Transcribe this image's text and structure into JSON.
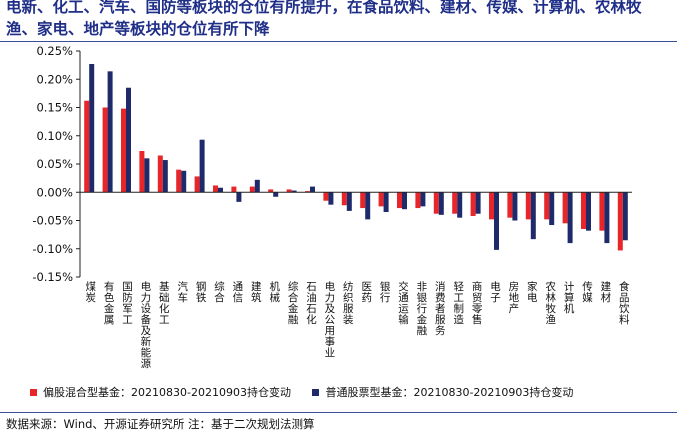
{
  "title": "电新、化工、汽车、国防等板块的仓位有所提升，在食品饮料、建材、传媒、计算机、农林牧渔、家电、地产等板块的仓位有所下降",
  "legend": {
    "series1_label": "偏股混合型基金：20210830-20210903持仓变动",
    "series2_label": "普通股票型基金：20210830-20210903持仓变动"
  },
  "source": "数据来源：Wind、开源证券研究所 注：基于二次规划法测算",
  "colors": {
    "series1": "#e8262a",
    "series2": "#1f2a6b",
    "title": "#1f2f88"
  },
  "chart_data": {
    "type": "bar",
    "title": "",
    "xlabel": "",
    "ylabel": "",
    "ylim": [
      -0.15,
      0.25
    ],
    "yticks": [
      -0.15,
      -0.1,
      -0.05,
      0.0,
      0.05,
      0.1,
      0.15,
      0.2,
      0.25
    ],
    "ytick_labels": [
      "-0.15%",
      "-0.10%",
      "-0.05%",
      "0.00%",
      "0.05%",
      "0.10%",
      "0.15%",
      "0.20%",
      "0.25%"
    ],
    "categories": [
      "煤炭",
      "有色金属",
      "国防军工",
      "电力设备及新能源",
      "基础化工",
      "汽车",
      "钢铁",
      "综合",
      "通信",
      "建筑",
      "机械",
      "综合金融",
      "石油石化",
      "电力及公用事业",
      "纺织服装",
      "医药",
      "银行",
      "交通运输",
      "非银行金融",
      "消费者服务",
      "轻工制造",
      "商贸零售",
      "电子",
      "房地产",
      "家电",
      "农林牧渔",
      "计算机",
      "传媒",
      "建材",
      "食品饮料"
    ],
    "series": [
      {
        "name": "偏股混合型基金：20210830-20210903持仓变动",
        "values": [
          0.162,
          0.15,
          0.148,
          0.073,
          0.065,
          0.04,
          0.028,
          0.012,
          0.01,
          0.01,
          0.005,
          0.005,
          0.002,
          -0.015,
          -0.023,
          -0.028,
          -0.025,
          -0.028,
          -0.028,
          -0.038,
          -0.038,
          -0.042,
          -0.048,
          -0.045,
          -0.048,
          -0.048,
          -0.055,
          -0.065,
          -0.068,
          -0.103
        ]
      },
      {
        "name": "普通股票型基金：20210830-20210903持仓变动",
        "values": [
          0.227,
          0.214,
          0.185,
          0.06,
          0.057,
          0.038,
          0.093,
          0.008,
          -0.017,
          0.022,
          -0.008,
          0.003,
          0.01,
          -0.022,
          -0.033,
          -0.048,
          -0.035,
          -0.03,
          -0.025,
          -0.04,
          -0.045,
          -0.038,
          -0.102,
          -0.05,
          -0.083,
          -0.058,
          -0.09,
          -0.068,
          -0.09,
          -0.085
        ]
      }
    ]
  }
}
